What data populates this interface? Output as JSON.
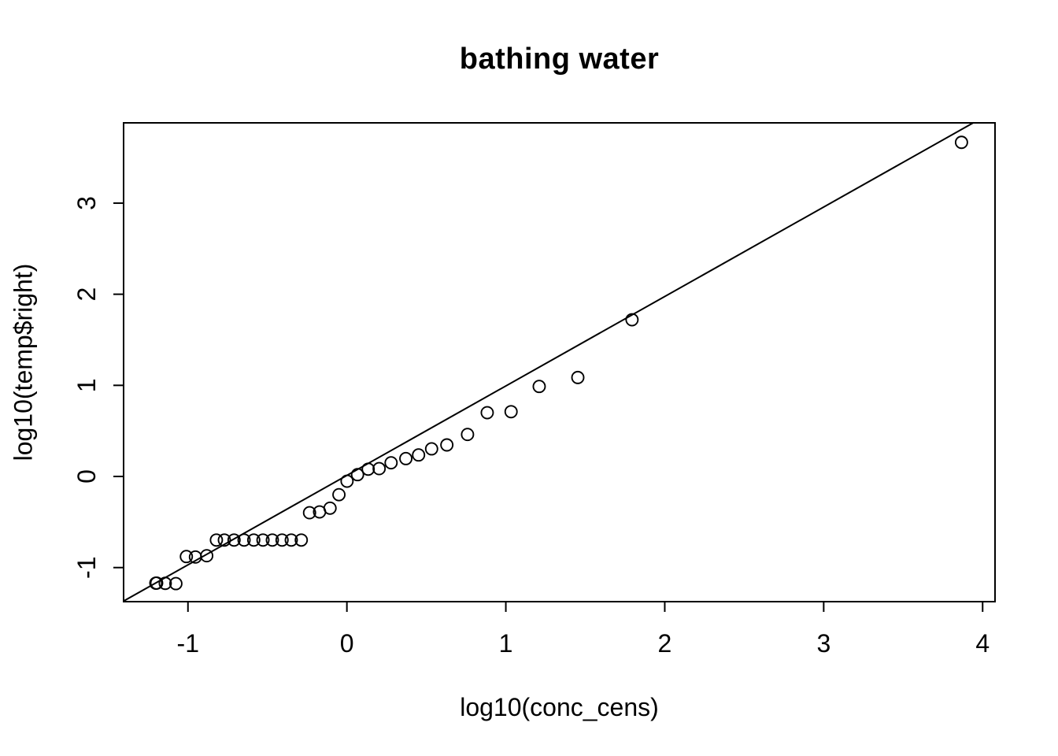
{
  "title": "bathing water",
  "chart_data": {
    "type": "scatter",
    "title": "bathing water",
    "xlabel": "log10(conc_cens)",
    "ylabel": "log10(temp$right)",
    "xlim": [
      -1.405,
      4.078
    ],
    "ylim": [
      -1.374,
      3.881
    ],
    "x_ticks": [
      "-1",
      "0",
      "1",
      "2",
      "3",
      "4"
    ],
    "x_tick_values": [
      -1,
      0,
      1,
      2,
      3,
      4
    ],
    "y_ticks": [
      "-1",
      "0",
      "1",
      "2",
      "3"
    ],
    "y_tick_values": [
      -1,
      0,
      1,
      2,
      3
    ],
    "grid": false,
    "legend": "none",
    "marker": "open-circle",
    "colors": {
      "background": "#ffffff",
      "points": "#000000",
      "reference_line": "#000000",
      "axis": "#000000",
      "text": "#000000"
    },
    "reference_line": {
      "description": "1:1 diagonal line",
      "x1": -1.405,
      "y1": -1.368,
      "x2": 3.943,
      "y2": 3.883
    },
    "points": [
      [
        -1.202,
        -1.171
      ],
      [
        -1.197,
        -1.17
      ],
      [
        -1.143,
        -1.173
      ],
      [
        -1.076,
        -1.176
      ],
      [
        -1.01,
        -0.879
      ],
      [
        -0.953,
        -0.884
      ],
      [
        -0.882,
        -0.87
      ],
      [
        -0.821,
        -0.698
      ],
      [
        -0.771,
        -0.698
      ],
      [
        -0.71,
        -0.698
      ],
      [
        -0.647,
        -0.698
      ],
      [
        -0.586,
        -0.698
      ],
      [
        -0.528,
        -0.698
      ],
      [
        -0.469,
        -0.698
      ],
      [
        -0.408,
        -0.698
      ],
      [
        -0.35,
        -0.698
      ],
      [
        -0.287,
        -0.698
      ],
      [
        -0.235,
        -0.398
      ],
      [
        -0.172,
        -0.389
      ],
      [
        -0.106,
        -0.348
      ],
      [
        -0.05,
        -0.2
      ],
      [
        0.001,
        -0.052
      ],
      [
        0.067,
        0.02
      ],
      [
        0.134,
        0.08
      ],
      [
        0.203,
        0.086
      ],
      [
        0.278,
        0.15
      ],
      [
        0.371,
        0.196
      ],
      [
        0.451,
        0.236
      ],
      [
        0.533,
        0.303
      ],
      [
        0.629,
        0.346
      ],
      [
        0.759,
        0.461
      ],
      [
        0.883,
        0.7
      ],
      [
        1.033,
        0.711
      ],
      [
        1.21,
        0.988
      ],
      [
        1.453,
        1.086
      ],
      [
        1.794,
        1.72
      ],
      [
        3.867,
        3.667
      ]
    ]
  }
}
